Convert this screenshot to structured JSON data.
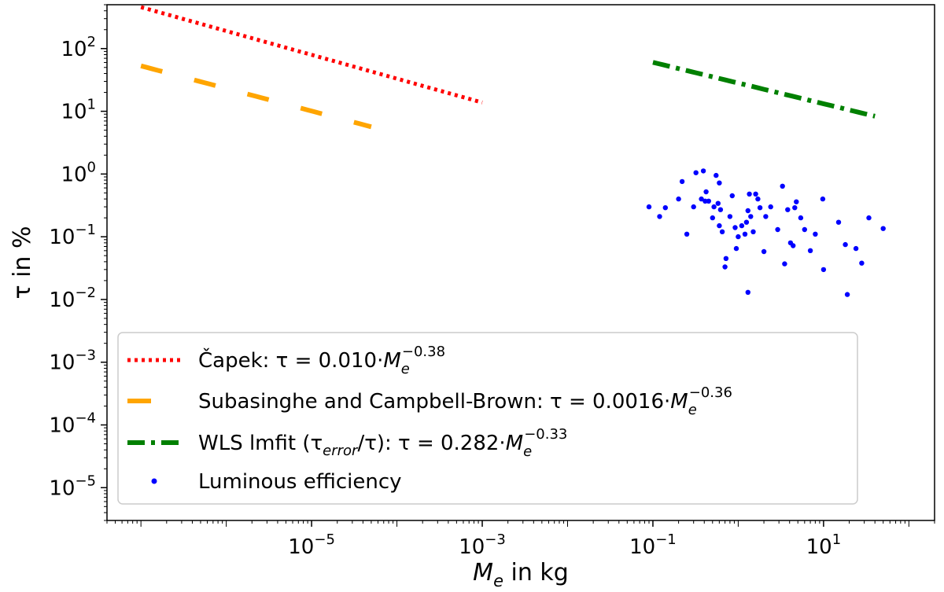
{
  "chart_data": {
    "type": "scatter",
    "title": "",
    "x_scale": "log",
    "y_scale": "log",
    "xlim": [
      4e-08,
      200
    ],
    "ylim": [
      3e-06,
      500
    ],
    "xlabel": {
      "base": "M",
      "sub": "e",
      "rest": " in kg"
    },
    "ylabel": "τ in %",
    "x_ticks": [
      {
        "value": 1e-05,
        "base": "10",
        "exp": "−5"
      },
      {
        "value": 0.001,
        "base": "10",
        "exp": "−3"
      },
      {
        "value": 0.1,
        "base": "10",
        "exp": "−1"
      },
      {
        "value": 10,
        "base": "10",
        "exp": "1"
      }
    ],
    "y_ticks": [
      {
        "value": 1e-05,
        "base": "10",
        "exp": "−5"
      },
      {
        "value": 0.0001,
        "base": "10",
        "exp": "−4"
      },
      {
        "value": 0.001,
        "base": "10",
        "exp": "−3"
      },
      {
        "value": 0.01,
        "base": "10",
        "exp": "−2"
      },
      {
        "value": 0.1,
        "base": "10",
        "exp": "−1"
      },
      {
        "value": 1,
        "base": "10",
        "exp": "0"
      },
      {
        "value": 10,
        "base": "10",
        "exp": "1"
      },
      {
        "value": 100,
        "base": "10",
        "exp": "2"
      }
    ],
    "legend_position": "lower-left",
    "series": [
      {
        "name": "capek-fit",
        "kind": "line",
        "style": "dotted",
        "color": "#ff0000",
        "coef": 0.01,
        "exponent": -0.38,
        "x_range": [
          1e-07,
          0.001
        ],
        "label": {
          "prefix": "Čapek: τ = 0.010·",
          "base": "M",
          "sub": "e",
          "sup": "−0.38",
          "suffix": ""
        }
      },
      {
        "name": "subasinghe-fit",
        "kind": "line",
        "style": "dashed",
        "color": "#ffa500",
        "coef": 0.0016,
        "exponent": -0.36,
        "x_range": [
          1e-07,
          5e-05
        ],
        "label": {
          "prefix": "Subasinghe and Campbell-Brown: τ = 0.0016·",
          "base": "M",
          "sub": "e",
          "sup": "−0.36",
          "suffix": ""
        }
      },
      {
        "name": "wls-fit",
        "kind": "line",
        "style": "dashdot",
        "color": "#008000",
        "coef": 0.282,
        "exponent": -0.33,
        "x_range": [
          0.1,
          40
        ],
        "label": {
          "prefix": "WLS lmfit (τ",
          "prefix_sub": "error",
          "prefix_tail": "/τ): τ = 0.282·",
          "base": "M",
          "sub": "e",
          "sup": "−0.33",
          "suffix": ""
        }
      },
      {
        "name": "luminous-efficiency",
        "kind": "scatter",
        "color": "#0000ff",
        "label": {
          "prefix": "Luminous efficiency"
        },
        "points": [
          [
            0.09,
            0.3
          ],
          [
            0.12,
            0.21
          ],
          [
            0.14,
            0.29
          ],
          [
            0.2,
            0.4
          ],
          [
            0.22,
            0.76
          ],
          [
            0.25,
            0.11
          ],
          [
            0.3,
            0.3
          ],
          [
            0.32,
            1.05
          ],
          [
            0.37,
            0.4
          ],
          [
            0.39,
            1.12
          ],
          [
            0.41,
            0.37
          ],
          [
            0.42,
            0.52
          ],
          [
            0.45,
            0.37
          ],
          [
            0.5,
            0.2
          ],
          [
            0.52,
            0.3
          ],
          [
            0.55,
            0.95
          ],
          [
            0.58,
            0.34
          ],
          [
            0.6,
            0.15
          ],
          [
            0.6,
            0.72
          ],
          [
            0.62,
            0.27
          ],
          [
            0.65,
            0.12
          ],
          [
            0.7,
            0.033
          ],
          [
            0.72,
            0.045
          ],
          [
            0.8,
            0.21
          ],
          [
            0.85,
            0.45
          ],
          [
            0.92,
            0.14
          ],
          [
            0.95,
            0.065
          ],
          [
            1.0,
            0.1
          ],
          [
            1.1,
            0.15
          ],
          [
            1.2,
            0.11
          ],
          [
            1.25,
            0.17
          ],
          [
            1.3,
            0.26
          ],
          [
            1.3,
            0.013
          ],
          [
            1.35,
            0.48
          ],
          [
            1.4,
            0.21
          ],
          [
            1.5,
            0.12
          ],
          [
            1.6,
            0.48
          ],
          [
            1.7,
            0.4
          ],
          [
            1.8,
            0.29
          ],
          [
            2.0,
            0.058
          ],
          [
            2.1,
            0.21
          ],
          [
            2.4,
            0.3
          ],
          [
            2.9,
            0.13
          ],
          [
            3.3,
            0.64
          ],
          [
            3.5,
            0.037
          ],
          [
            3.8,
            0.27
          ],
          [
            4.1,
            0.08
          ],
          [
            4.4,
            0.072
          ],
          [
            4.6,
            0.29
          ],
          [
            4.8,
            0.36
          ],
          [
            5.4,
            0.2
          ],
          [
            6.0,
            0.13
          ],
          [
            7.0,
            0.06
          ],
          [
            8.0,
            0.11
          ],
          [
            9.8,
            0.4
          ],
          [
            10.0,
            0.03
          ],
          [
            15.0,
            0.17
          ],
          [
            18.0,
            0.075
          ],
          [
            19.0,
            0.012
          ],
          [
            24.0,
            0.065
          ],
          [
            28.0,
            0.038
          ],
          [
            34.0,
            0.2
          ],
          [
            50.0,
            0.135
          ]
        ]
      }
    ]
  }
}
